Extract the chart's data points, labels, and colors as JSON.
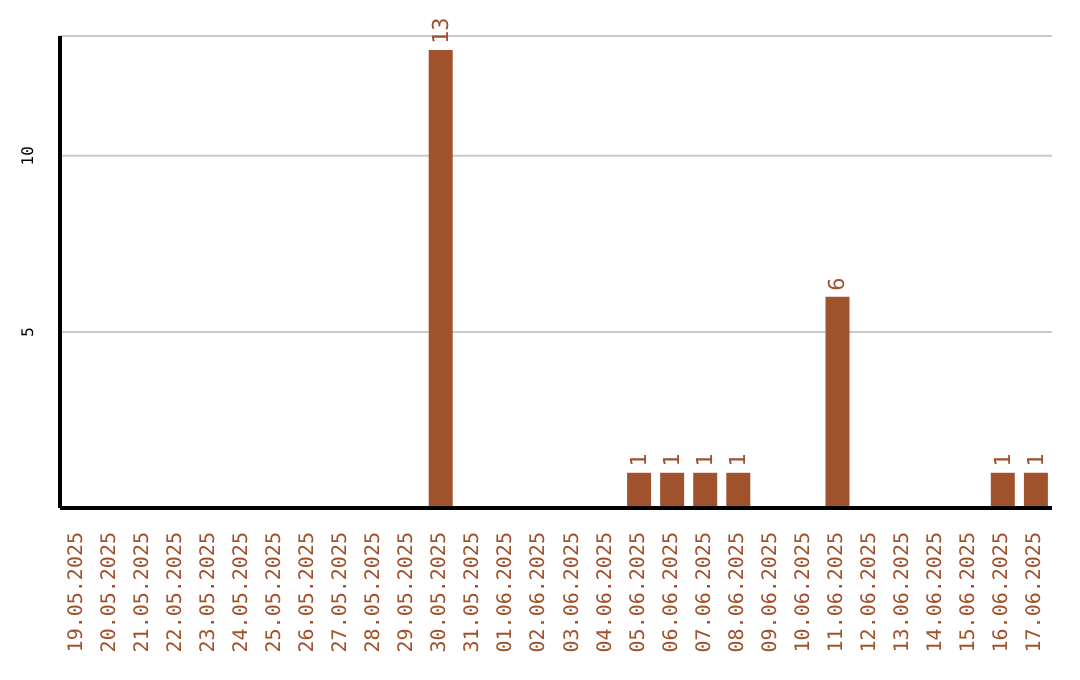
{
  "chart_data": {
    "type": "bar",
    "categories": [
      "19.05.2025",
      "20.05.2025",
      "21.05.2025",
      "22.05.2025",
      "23.05.2025",
      "24.05.2025",
      "25.05.2025",
      "26.05.2025",
      "27.05.2025",
      "28.05.2025",
      "29.05.2025",
      "30.05.2025",
      "31.05.2025",
      "01.06.2025",
      "02.06.2025",
      "03.06.2025",
      "04.06.2025",
      "05.06.2025",
      "06.06.2025",
      "07.06.2025",
      "08.06.2025",
      "09.06.2025",
      "10.06.2025",
      "11.06.2025",
      "12.06.2025",
      "13.06.2025",
      "14.06.2025",
      "15.06.2025",
      "16.06.2025",
      "17.06.2025"
    ],
    "values": [
      0,
      0,
      0,
      0,
      0,
      0,
      0,
      0,
      0,
      0,
      0,
      13,
      0,
      0,
      0,
      0,
      0,
      1,
      1,
      1,
      1,
      0,
      0,
      6,
      0,
      0,
      0,
      0,
      1,
      1
    ],
    "value_labels": [
      null,
      null,
      null,
      null,
      null,
      null,
      null,
      null,
      null,
      null,
      null,
      "13",
      null,
      null,
      null,
      null,
      null,
      "1",
      "1",
      "1",
      "1",
      null,
      null,
      "6",
      null,
      null,
      null,
      null,
      "1",
      "1"
    ],
    "color": "#a0522d",
    "ylim": [
      0,
      13.4
    ],
    "yticks": [
      5,
      10
    ],
    "grid": "y"
  }
}
